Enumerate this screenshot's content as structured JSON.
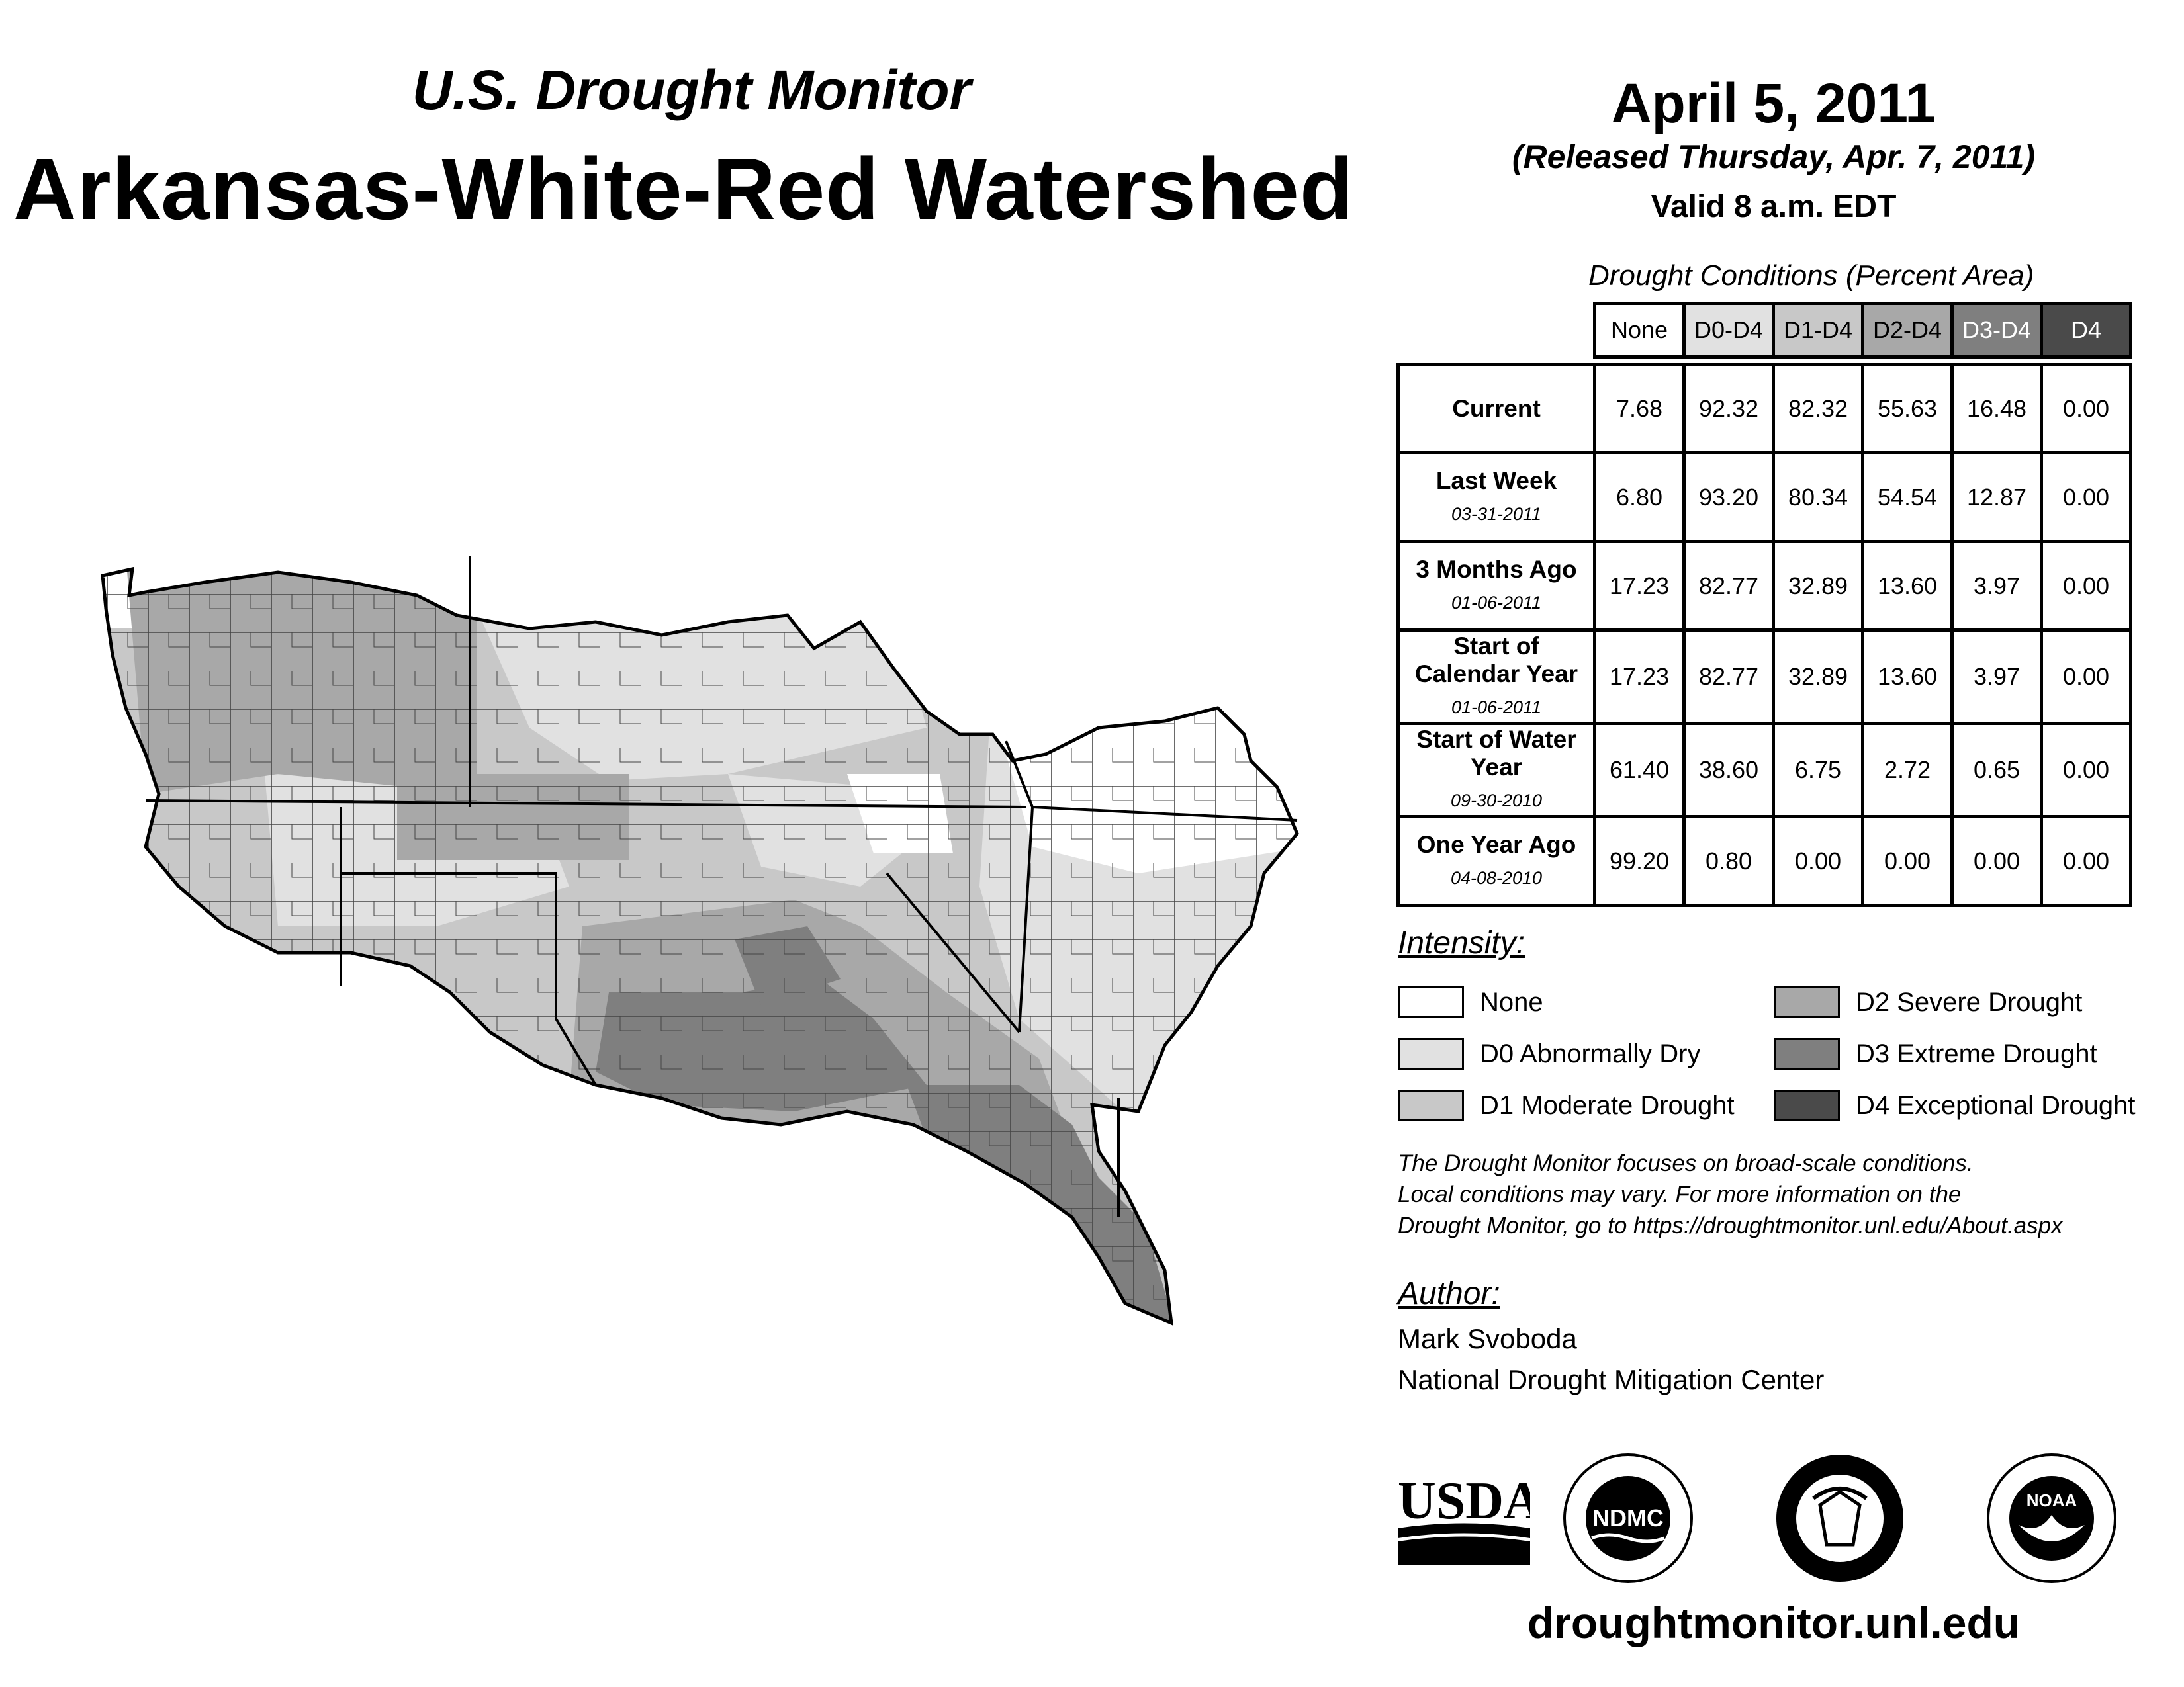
{
  "header": {
    "subtitle": "U.S. Drought Monitor",
    "title": "Arkansas-White-Red Watershed",
    "date": "April 5, 2011",
    "released": "(Released Thursday, Apr. 7, 2011)",
    "valid": "Valid 8 a.m. EDT"
  },
  "table": {
    "title": "Drought Conditions (Percent Area)",
    "columns": [
      "None",
      "D0-D4",
      "D1-D4",
      "D2-D4",
      "D3-D4",
      "D4"
    ],
    "rows": [
      {
        "label": "Current",
        "date": "",
        "values": [
          "7.68",
          "92.32",
          "82.32",
          "55.63",
          "16.48",
          "0.00"
        ]
      },
      {
        "label": "Last Week",
        "date": "03-31-2011",
        "values": [
          "6.80",
          "93.20",
          "80.34",
          "54.54",
          "12.87",
          "0.00"
        ]
      },
      {
        "label": "3 Months Ago",
        "date": "01-06-2011",
        "values": [
          "17.23",
          "82.77",
          "32.89",
          "13.60",
          "3.97",
          "0.00"
        ]
      },
      {
        "label": "Start of Calendar Year",
        "date": "01-06-2011",
        "values": [
          "17.23",
          "82.77",
          "32.89",
          "13.60",
          "3.97",
          "0.00"
        ]
      },
      {
        "label": "Start of Water Year",
        "date": "09-30-2010",
        "values": [
          "61.40",
          "38.60",
          "6.75",
          "2.72",
          "0.65",
          "0.00"
        ]
      },
      {
        "label": "One Year Ago",
        "date": "04-08-2010",
        "values": [
          "99.20",
          "0.80",
          "0.00",
          "0.00",
          "0.00",
          "0.00"
        ]
      }
    ]
  },
  "legend": {
    "title": "Intensity:",
    "items": [
      {
        "label": "None",
        "color": "#ffffff"
      },
      {
        "label": "D0 Abnormally Dry",
        "color": "#e1e1e1"
      },
      {
        "label": "D1 Moderate Drought",
        "color": "#c8c8c8"
      },
      {
        "label": "D2 Severe Drought",
        "color": "#a8a8a8"
      },
      {
        "label": "D3 Extreme Drought",
        "color": "#7f7f7f"
      },
      {
        "label": "D4 Exceptional Drought",
        "color": "#4a4a4a"
      }
    ]
  },
  "note": {
    "line1": "The Drought Monitor focuses on broad-scale conditions.",
    "line2": "Local conditions may vary. For more information on the",
    "line3": "Drought Monitor, go to https://droughtmonitor.unl.edu/About.aspx"
  },
  "author": {
    "title": "Author:",
    "name": "Mark Svoboda",
    "org": "National Drought Mitigation Center"
  },
  "logos": {
    "usda": "USDA",
    "ndmc": "NDMC",
    "noaa": "NOAA"
  },
  "website": "droughtmonitor.unl.edu",
  "header_colors": [
    "#ffffff",
    "#e1e1e1",
    "#c8c8c8",
    "#a8a8a8",
    "#7f7f7f",
    "#4a4a4a"
  ]
}
